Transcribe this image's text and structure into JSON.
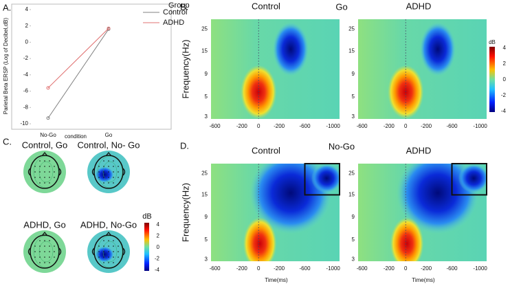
{
  "chart_data": {
    "type": "line",
    "panel_label": "A.",
    "categories": [
      "No-Go",
      "Go"
    ],
    "x_label": "condition",
    "y_label": "Parietal Beta ERSP (Log of Decibel,dB)",
    "legend_title": "Group",
    "series": [
      {
        "name": "Control",
        "color": "#808080",
        "values": [
          -9.3,
          1.6
        ]
      },
      {
        "name": "ADHD",
        "color": "#e07070",
        "values": [
          -5.6,
          1.7
        ]
      }
    ],
    "ylim": [
      -10.5,
      4.5
    ],
    "yticks": [
      4,
      2,
      0,
      -2,
      -4,
      -6,
      -8,
      -10
    ]
  },
  "panel_b": {
    "label": "B.",
    "groups": [
      "Control",
      "ADHD"
    ],
    "condition": "Go",
    "y_label": "Frequency(Hz)",
    "yticks": [
      "25",
      "15",
      "9",
      "5",
      "3"
    ],
    "xticks": [
      "-600",
      "-200",
      "0",
      "-200",
      "-600",
      "-1000"
    ],
    "colorbar": {
      "title": "dB",
      "ticks": [
        "4",
        "2",
        "0",
        "-2",
        "-4"
      ]
    }
  },
  "panel_c": {
    "label": "C.",
    "maps": [
      "Control, Go",
      "Control, No- Go",
      "ADHD, Go",
      "ADHD, No-Go"
    ],
    "colorbar": {
      "title": "dB",
      "ticks": [
        "4",
        "2",
        "0",
        "-2",
        "-4"
      ]
    }
  },
  "panel_d": {
    "label": "D.",
    "groups": [
      "Control",
      "ADHD"
    ],
    "condition": "No-Go",
    "y_label": "Frequency(Hz)",
    "x_label": "Time(ms)",
    "yticks": [
      "25",
      "15",
      "9",
      "5",
      "3"
    ],
    "xticks": [
      "-600",
      "-200",
      "0",
      "-200",
      "-600",
      "-1000"
    ]
  }
}
